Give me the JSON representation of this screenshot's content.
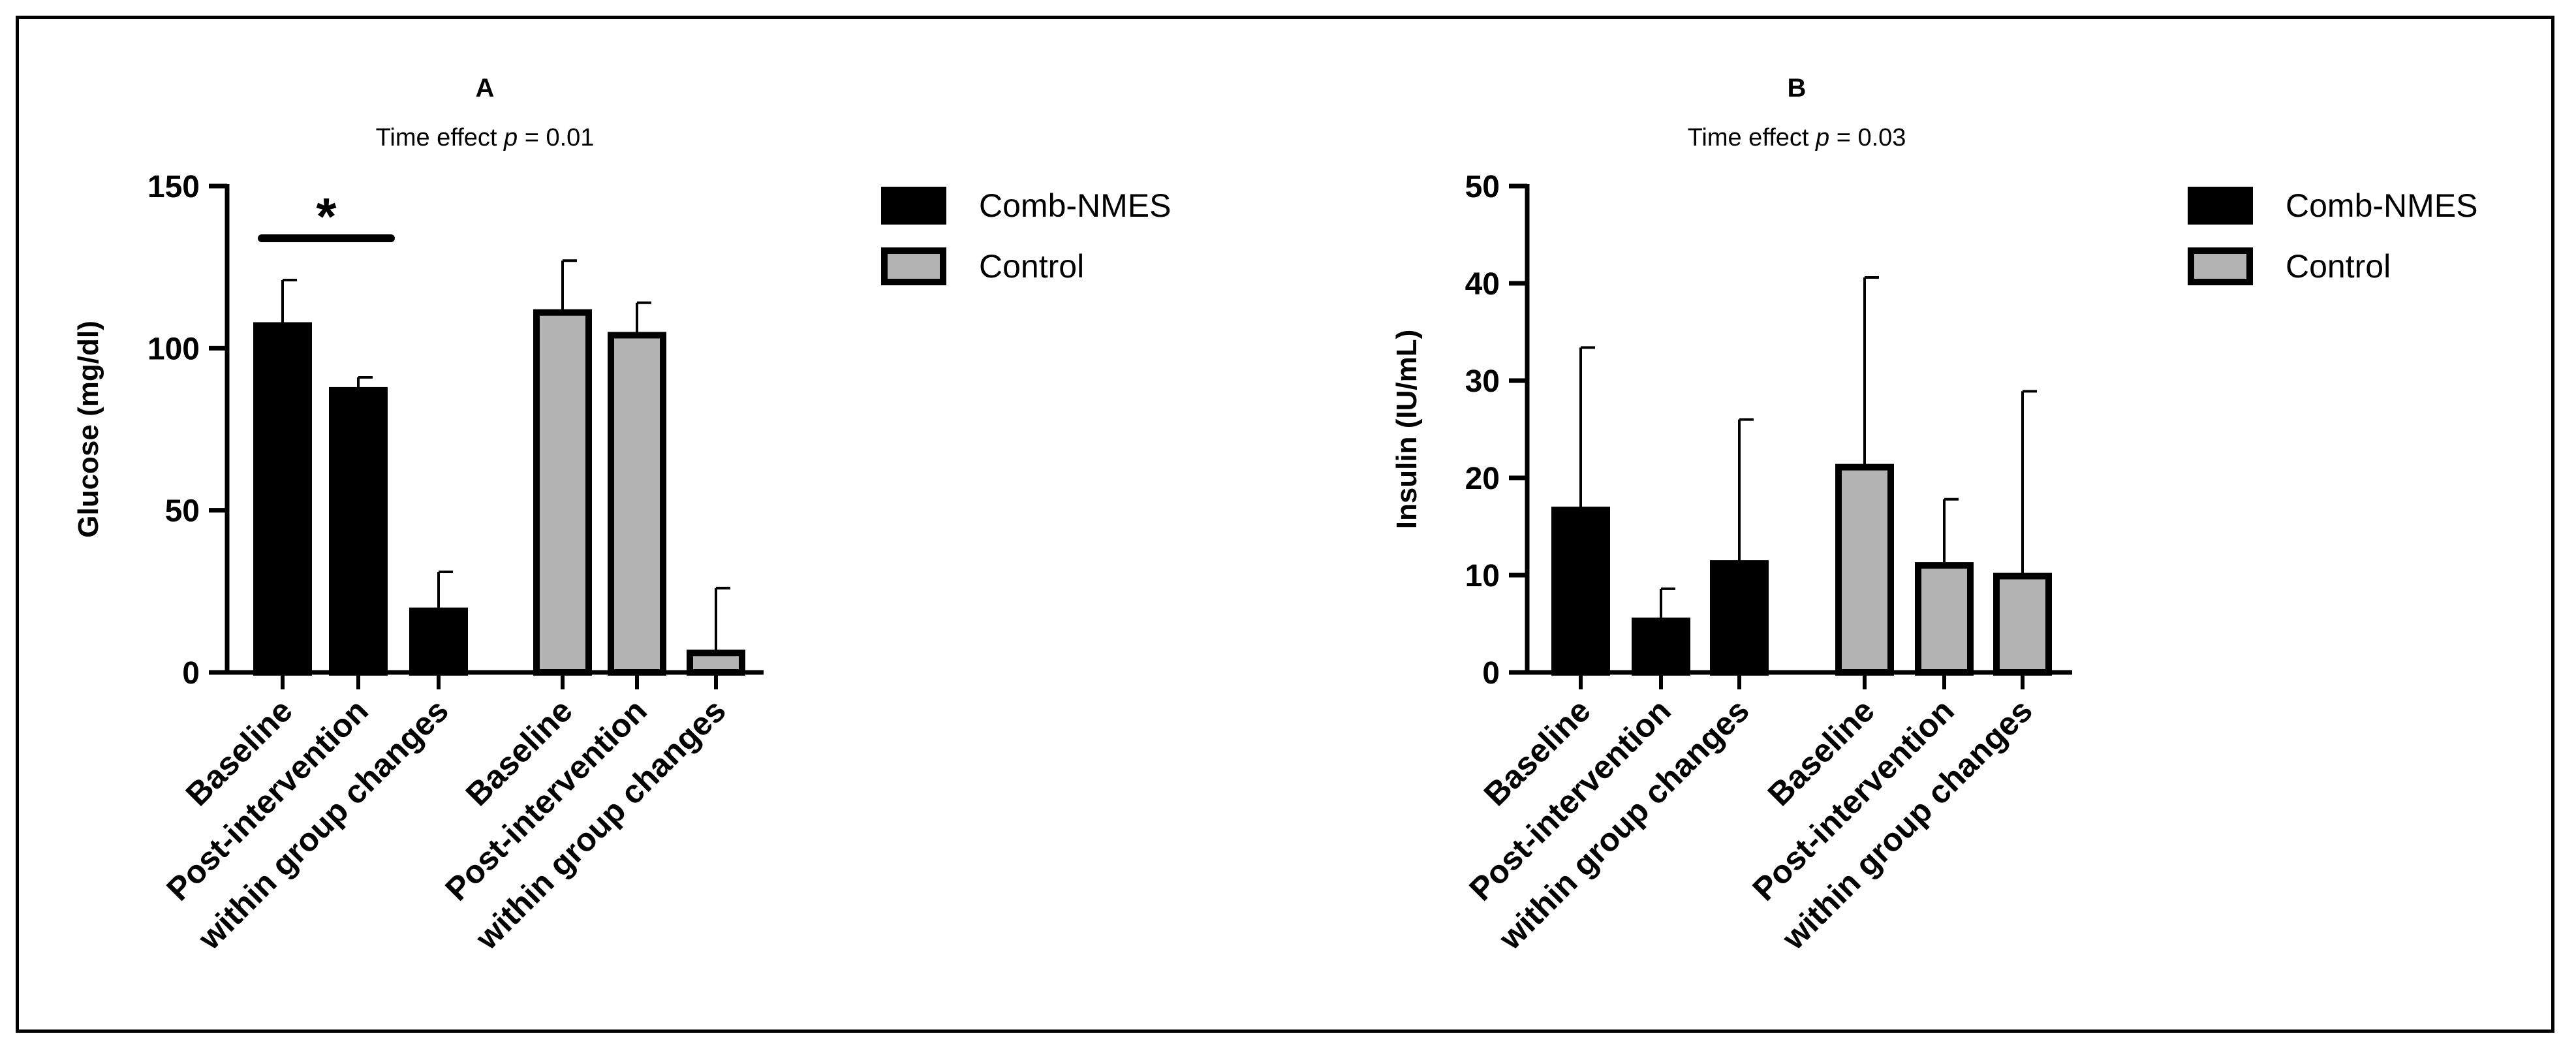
{
  "chart_data": [
    {
      "type": "bar",
      "panel_label": "A",
      "subtitle_prefix": "Time effect ",
      "subtitle_p": "p",
      "subtitle_suffix": " = 0.01",
      "ylabel": "Glucose (mg/dl)",
      "ylim": [
        0,
        150
      ],
      "yticks": [
        0,
        50,
        100,
        150
      ],
      "significance_marker": "*",
      "significance_between": [
        0,
        1
      ],
      "categories": [
        "Baseline",
        "Post-intervention",
        "within group changes",
        "Baseline",
        "Post-intervention",
        "within group changes"
      ],
      "bars": [
        {
          "series": "Comb-NMES",
          "value": 107,
          "error": 14
        },
        {
          "series": "Comb-NMES",
          "value": 87,
          "error": 4
        },
        {
          "series": "Comb-NMES",
          "value": 19,
          "error": 12
        },
        {
          "series": "Control",
          "value": 111,
          "error": 16
        },
        {
          "series": "Control",
          "value": 104,
          "error": 10
        },
        {
          "series": "Control",
          "value": 6,
          "error": 20
        }
      ]
    },
    {
      "type": "bar",
      "panel_label": "B",
      "subtitle_prefix": "Time effect ",
      "subtitle_p": "p",
      "subtitle_suffix": " = 0.03",
      "ylabel": "Insulin (IU/mL)",
      "ylim": [
        0,
        50
      ],
      "yticks": [
        0,
        10,
        20,
        30,
        40,
        50
      ],
      "categories": [
        "Baseline",
        "Post-intervention",
        "within group changes",
        "Baseline",
        "Post-intervention",
        "within group changes"
      ],
      "bars": [
        {
          "series": "Comb-NMES",
          "value": 16.7,
          "error": 16.7
        },
        {
          "series": "Comb-NMES",
          "value": 5.3,
          "error": 3.3
        },
        {
          "series": "Comb-NMES",
          "value": 11.2,
          "error": 14.8
        },
        {
          "series": "Control",
          "value": 21.1,
          "error": 19.5
        },
        {
          "series": "Control",
          "value": 11,
          "error": 6.8
        },
        {
          "series": "Control",
          "value": 9.9,
          "error": 19
        }
      ]
    }
  ],
  "legend": [
    {
      "label": "Comb-NMES",
      "color": "#000000"
    },
    {
      "label": "Control",
      "color": "#b3b3b3"
    }
  ]
}
